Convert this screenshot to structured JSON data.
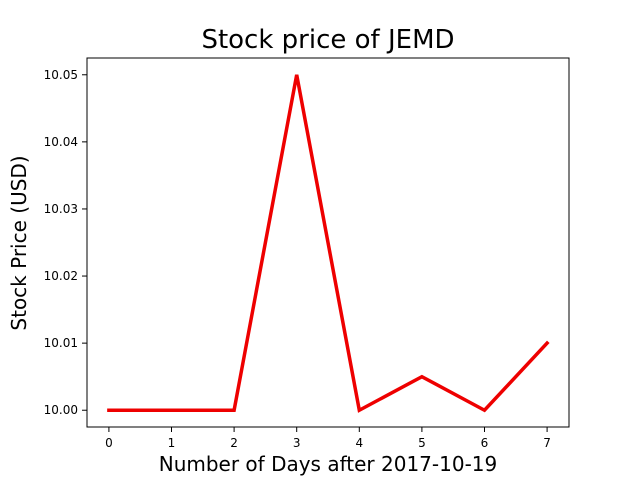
{
  "chart_data": {
    "type": "line",
    "title": "Stock price of JEMD",
    "xlabel": "Number of Days after 2017-10-19",
    "ylabel": "Stock Price (USD)",
    "x": [
      0,
      1,
      2,
      3,
      4,
      5,
      6,
      7
    ],
    "series": [
      {
        "values": [
          10.0,
          10.0,
          10.0,
          10.05,
          10.0,
          10.005,
          10.0,
          10.01
        ],
        "color": "#ee0000"
      }
    ],
    "xlim": [
      -0.35,
      7.35
    ],
    "ylim": [
      9.9975,
      10.0525
    ],
    "xticks": [
      "0",
      "1",
      "2",
      "3",
      "4",
      "5",
      "6",
      "7"
    ],
    "yticks": [
      "10.00",
      "10.01",
      "10.02",
      "10.03",
      "10.04",
      "10.05"
    ],
    "grid": false
  }
}
